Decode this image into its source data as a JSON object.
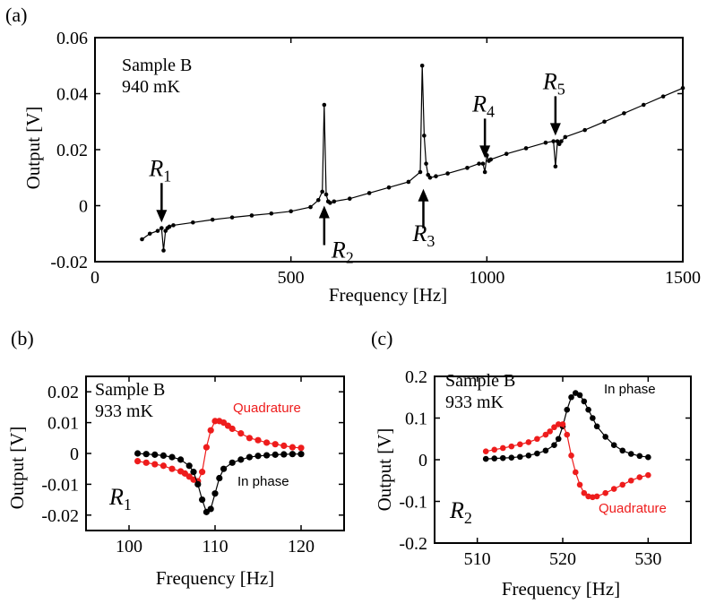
{
  "chart_data": [
    {
      "panel_label": "(a)",
      "type": "line",
      "xlabel": "Frequency [Hz]",
      "ylabel": "Output [V]",
      "xlim": [
        0,
        1500
      ],
      "ylim": [
        -0.02,
        0.06
      ],
      "xticks": [
        0,
        500,
        1000,
        1500
      ],
      "yticks": [
        -0.02,
        0,
        0.02,
        0.04,
        0.06
      ],
      "xtick_labels": [
        "0",
        "500",
        "1000",
        "1500"
      ],
      "ytick_labels": [
        "-0.02",
        "0",
        "0.02",
        "0.04",
        "0.06"
      ],
      "annotation": [
        "Sample B",
        "940 mK"
      ],
      "series": [
        {
          "color": "#000000",
          "markers": true,
          "x": [
            120,
            140,
            160,
            170,
            175,
            180,
            185,
            190,
            200,
            250,
            300,
            350,
            400,
            450,
            500,
            550,
            570,
            580,
            585,
            590,
            595,
            600,
            610,
            650,
            700,
            750,
            800,
            830,
            835,
            840,
            845,
            850,
            855,
            870,
            900,
            950,
            980,
            990,
            995,
            1000,
            1005,
            1010,
            1050,
            1100,
            1150,
            1170,
            1175,
            1180,
            1185,
            1190,
            1200,
            1250,
            1300,
            1350,
            1400,
            1450,
            1500
          ],
          "y": [
            -0.012,
            -0.01,
            -0.009,
            -0.008,
            -0.016,
            -0.009,
            -0.008,
            -0.0075,
            -0.007,
            -0.006,
            -0.005,
            -0.0042,
            -0.0035,
            -0.0028,
            -0.002,
            -0.0005,
            0.002,
            0.005,
            0.036,
            0.004,
            0.0015,
            0.001,
            0.0015,
            0.0025,
            0.0045,
            0.0065,
            0.0085,
            0.012,
            0.05,
            0.025,
            0.015,
            0.011,
            0.01,
            0.0105,
            0.0115,
            0.0135,
            0.015,
            0.015,
            0.012,
            0.018,
            0.016,
            0.0165,
            0.0185,
            0.0205,
            0.0225,
            0.023,
            0.014,
            0.023,
            0.022,
            0.023,
            0.0245,
            0.027,
            0.03,
            0.033,
            0.036,
            0.039,
            0.042
          ]
        }
      ],
      "arrows": [
        {
          "label": "R",
          "sub": "1",
          "x": 170,
          "direction": "down"
        },
        {
          "label": "R",
          "sub": "2",
          "x": 585,
          "direction": "up"
        },
        {
          "label": "R",
          "sub": "3",
          "x": 838,
          "direction": "up"
        },
        {
          "label": "R",
          "sub": "4",
          "x": 995,
          "direction": "down"
        },
        {
          "label": "R",
          "sub": "5",
          "x": 1175,
          "direction": "down"
        }
      ]
    },
    {
      "panel_label": "(b)",
      "type": "line",
      "xlabel": "Frequency [Hz]",
      "ylabel": "Output [V]",
      "xlim": [
        95,
        125
      ],
      "ylim": [
        -0.025,
        0.025
      ],
      "xticks": [
        100,
        110,
        120
      ],
      "yticks": [
        -0.02,
        -0.01,
        0,
        0.01,
        0.02
      ],
      "xtick_labels": [
        "100",
        "110",
        "120"
      ],
      "ytick_labels": [
        "-0.02",
        "-0.01",
        "0",
        "0.01",
        "0.02"
      ],
      "annotation": [
        "Sample B",
        "933 mK"
      ],
      "resonance_label": {
        "label": "R",
        "sub": "1"
      },
      "series": [
        {
          "name": "Quadrature",
          "color": "#ee1c1c",
          "x": [
            101,
            102,
            103,
            104,
            105,
            106,
            106.5,
            107,
            107.5,
            108,
            108.5,
            109,
            109.5,
            110,
            110.5,
            111,
            111.5,
            112,
            113,
            114,
            115,
            116,
            117,
            118,
            119,
            120
          ],
          "y": [
            -0.0025,
            -0.003,
            -0.0035,
            -0.004,
            -0.005,
            -0.0058,
            -0.0065,
            -0.0075,
            -0.0085,
            -0.009,
            -0.006,
            0.002,
            0.0075,
            0.0105,
            0.0105,
            0.01,
            0.009,
            0.008,
            0.0065,
            0.005,
            0.0043,
            0.0035,
            0.003,
            0.0025,
            0.002,
            0.0018
          ]
        },
        {
          "name": "In phase",
          "color": "#000000",
          "x": [
            101,
            102,
            103,
            104,
            105,
            106,
            107,
            107.5,
            108,
            108.5,
            109,
            109.5,
            110,
            110.5,
            111,
            112,
            113,
            114,
            115,
            116,
            117,
            118,
            119,
            120
          ],
          "y": [
            0,
            -0.0002,
            -0.0004,
            -0.0007,
            -0.0012,
            -0.002,
            -0.004,
            -0.006,
            -0.01,
            -0.015,
            -0.019,
            -0.018,
            -0.013,
            -0.008,
            -0.005,
            -0.003,
            -0.002,
            -0.0012,
            -0.0008,
            -0.0006,
            -0.0004,
            -0.0003,
            -0.0002,
            -0.0002
          ]
        }
      ]
    },
    {
      "panel_label": "(c)",
      "type": "line",
      "xlabel": "Frequency [Hz]",
      "ylabel": "Output [V]",
      "xlim": [
        505,
        535
      ],
      "ylim": [
        -0.2,
        0.2
      ],
      "xticks": [
        510,
        520,
        530
      ],
      "yticks": [
        -0.2,
        -0.1,
        0,
        0.1,
        0.2
      ],
      "xtick_labels": [
        "510",
        "520",
        "530"
      ],
      "ytick_labels": [
        "-0.2",
        "-0.1",
        "0",
        "0.1",
        "0.2"
      ],
      "annotation": [
        "Sample B",
        "933 mK"
      ],
      "resonance_label": {
        "label": "R",
        "sub": "2"
      },
      "series": [
        {
          "name": "In phase",
          "color": "#000000",
          "x": [
            511,
            512,
            513,
            514,
            515,
            516,
            517,
            518,
            519,
            519.5,
            520,
            520.5,
            521,
            521.5,
            522,
            522.5,
            523,
            523.5,
            524,
            525,
            526,
            527,
            528,
            529,
            530
          ],
          "y": [
            0.002,
            0.003,
            0.004,
            0.005,
            0.007,
            0.01,
            0.015,
            0.022,
            0.035,
            0.05,
            0.08,
            0.12,
            0.15,
            0.16,
            0.155,
            0.14,
            0.12,
            0.1,
            0.08,
            0.055,
            0.035,
            0.022,
            0.014,
            0.009,
            0.006
          ]
        },
        {
          "name": "Quadrature",
          "color": "#ee1c1c",
          "x": [
            511,
            512,
            513,
            514,
            515,
            516,
            517,
            518,
            518.5,
            519,
            519.5,
            520,
            520.5,
            521,
            521.5,
            522,
            522.5,
            523,
            523.5,
            524,
            525,
            526,
            527,
            528,
            529,
            530
          ],
          "y": [
            0.02,
            0.024,
            0.028,
            0.032,
            0.037,
            0.042,
            0.05,
            0.06,
            0.068,
            0.078,
            0.085,
            0.085,
            0.06,
            0.01,
            -0.03,
            -0.06,
            -0.08,
            -0.088,
            -0.09,
            -0.088,
            -0.08,
            -0.07,
            -0.06,
            -0.05,
            -0.042,
            -0.037
          ]
        }
      ]
    }
  ]
}
